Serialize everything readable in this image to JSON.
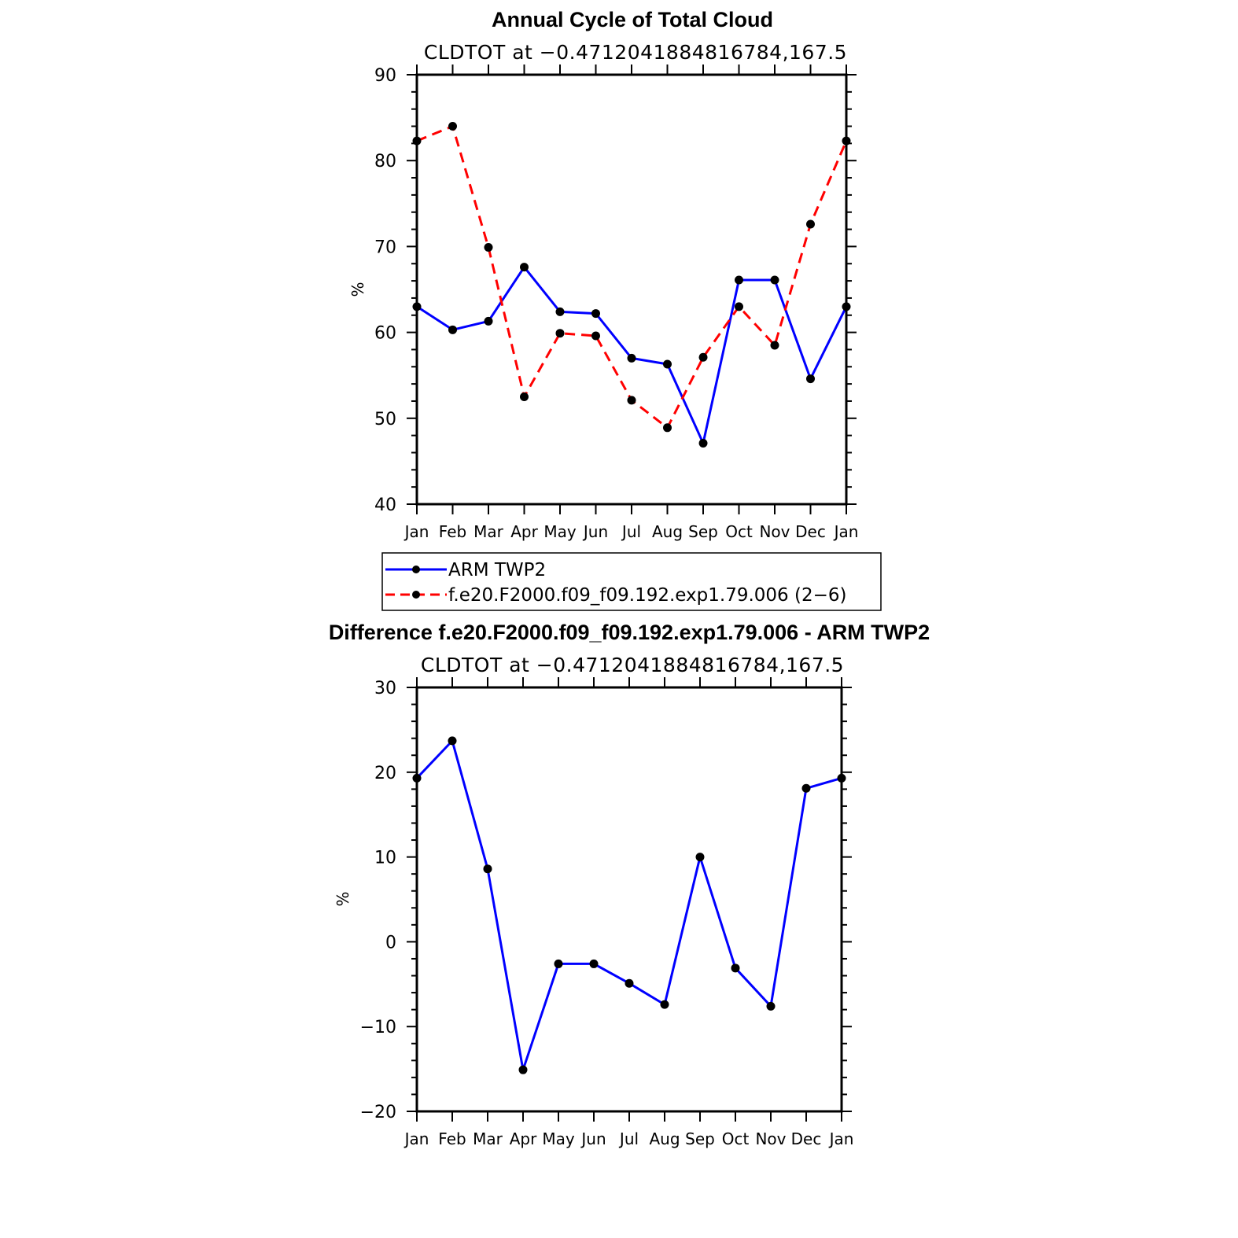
{
  "chart_data": [
    {
      "type": "line",
      "title": "Annual Cycle of Total Cloud",
      "subtitle": "CLDTOT at −0.4712041884816784,167.5",
      "ylabel": "%",
      "xlabel": "",
      "ylim": [
        40,
        90
      ],
      "yticks": [
        40,
        50,
        60,
        70,
        80,
        90
      ],
      "ytick_labels": [
        "40",
        "50",
        "60",
        "70",
        "80",
        "90"
      ],
      "categories": [
        "Jan",
        "Feb",
        "Mar",
        "Apr",
        "May",
        "Jun",
        "Jul",
        "Aug",
        "Sep",
        "Oct",
        "Nov",
        "Dec",
        "Jan"
      ],
      "series": [
        {
          "name": "ARM TWP2",
          "color": "#0000ff",
          "dash": "solid",
          "values": [
            63.0,
            60.3,
            61.3,
            67.6,
            62.4,
            62.2,
            57.0,
            56.3,
            47.1,
            66.1,
            66.1,
            54.6,
            63.0
          ]
        },
        {
          "name": "f.e20.F2000.f09_f09.192.exp1.79.006 (2−6)",
          "color": "#ff0000",
          "dash": "dashed",
          "values": [
            82.3,
            84.0,
            69.9,
            52.5,
            59.9,
            59.6,
            52.1,
            48.9,
            57.1,
            63.0,
            58.5,
            72.6,
            82.3
          ]
        }
      ],
      "legend": "below"
    },
    {
      "type": "line",
      "title": "Difference f.e20.F2000.f09_f09.192.exp1.79.006 - ARM TWP2",
      "subtitle": "CLDTOT at −0.4712041884816784,167.5",
      "ylabel": "%",
      "xlabel": "",
      "ylim": [
        -20,
        30
      ],
      "yticks": [
        -20,
        -10,
        0,
        10,
        20,
        30
      ],
      "ytick_labels": [
        "−20",
        "−10",
        "0",
        "10",
        "20",
        "30"
      ],
      "categories": [
        "Jan",
        "Feb",
        "Mar",
        "Apr",
        "May",
        "Jun",
        "Jul",
        "Aug",
        "Sep",
        "Oct",
        "Nov",
        "Dec",
        "Jan"
      ],
      "series": [
        {
          "name": "Difference",
          "color": "#0000ff",
          "dash": "solid",
          "values": [
            19.3,
            23.7,
            8.6,
            -15.1,
            -2.6,
            -2.6,
            -4.9,
            -7.4,
            10.0,
            -3.1,
            -7.6,
            18.1,
            19.3
          ]
        }
      ]
    }
  ]
}
